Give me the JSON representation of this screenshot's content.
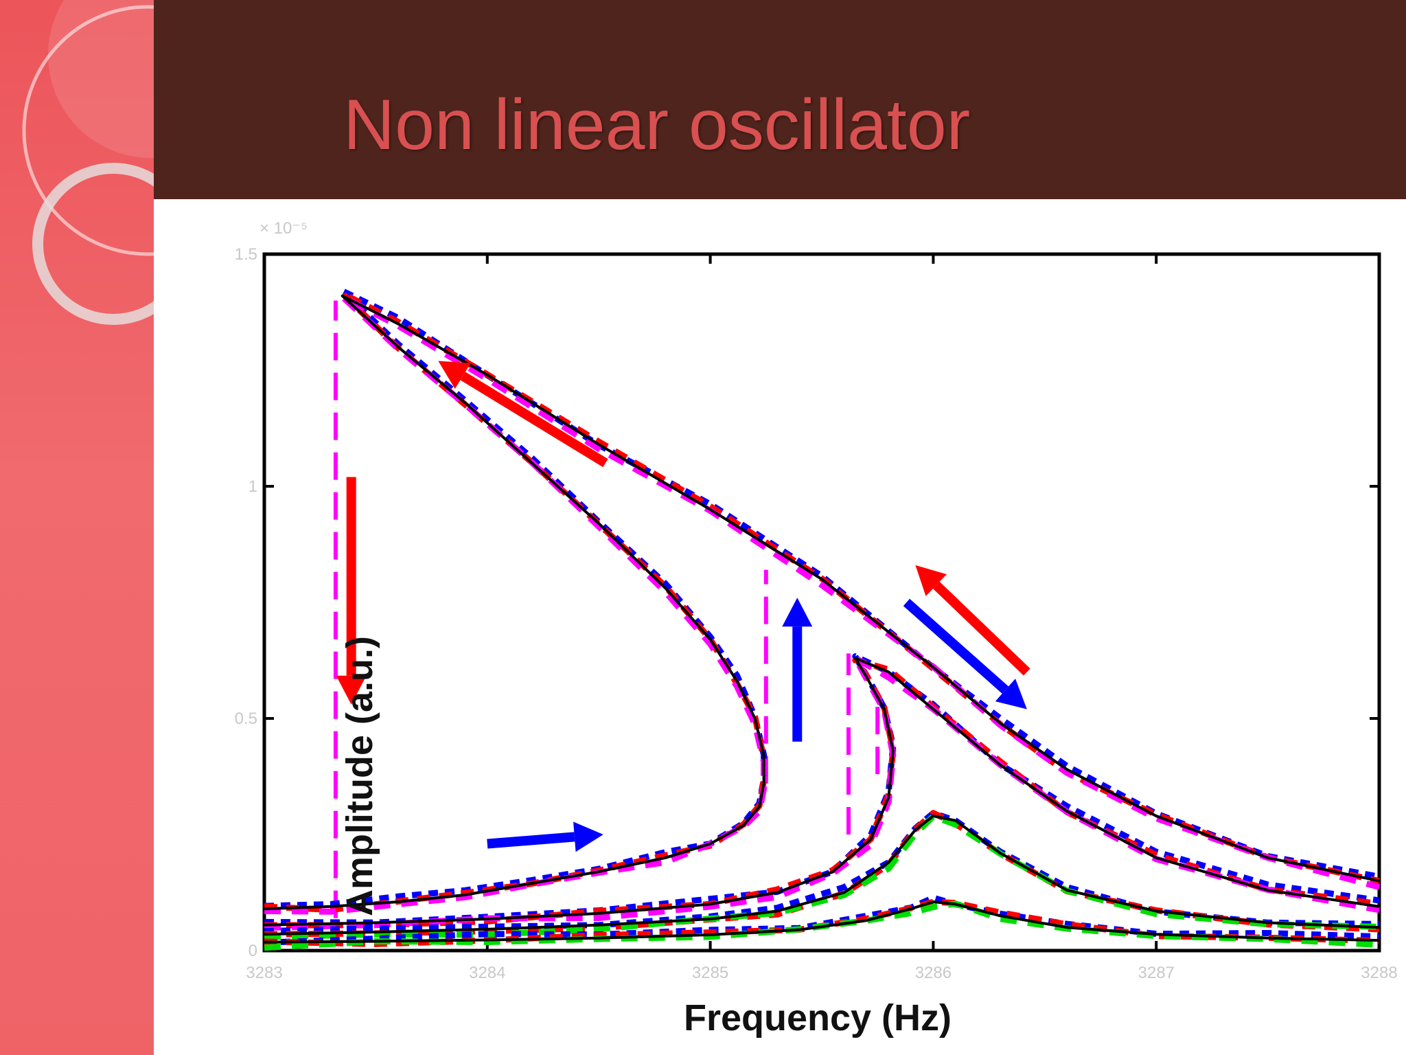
{
  "slide": {
    "title": "Non linear oscillator"
  },
  "colors": {
    "sidebar": "#ee5b60",
    "title_bar": "#4e241d",
    "title_text": "#d85050",
    "up_sweep": "#ff0000",
    "down_sweep": "#0000ff",
    "theory": "#000000",
    "jump": "#ff00ff",
    "green_data": "#00dd00"
  },
  "chart_data": {
    "type": "line",
    "xlabel": "Frequency (Hz)",
    "ylabel": "Amplitude (a.u.)",
    "y_scale_label": "× 10⁻⁵",
    "xlim": [
      3283,
      3288
    ],
    "ylim": [
      0,
      1.5
    ],
    "x_ticks": [
      3283,
      3284,
      3285,
      3286,
      3287,
      3288
    ],
    "x_tick_labels": [
      "3283",
      "3284",
      "3285",
      "3286",
      "3287",
      "3288"
    ],
    "y_ticks": [
      0,
      0.5,
      1,
      1.5
    ],
    "y_tick_labels": [
      "0",
      "0.5",
      "1",
      "1.5"
    ],
    "grid": false,
    "series": [
      {
        "role": "theory-largest",
        "points": [
          [
            3283.0,
            0.09
          ],
          [
            3283.3,
            0.095
          ],
          [
            3283.6,
            0.105
          ],
          [
            3283.9,
            0.12
          ],
          [
            3284.2,
            0.145
          ],
          [
            3284.5,
            0.17
          ],
          [
            3284.8,
            0.2
          ],
          [
            3285.0,
            0.23
          ],
          [
            3285.15,
            0.27
          ],
          [
            3285.22,
            0.31
          ],
          [
            3285.24,
            0.36
          ],
          [
            3285.24,
            0.42
          ],
          [
            3285.2,
            0.5
          ],
          [
            3285.12,
            0.58
          ],
          [
            3285.0,
            0.67
          ],
          [
            3284.8,
            0.78
          ],
          [
            3284.5,
            0.92
          ],
          [
            3284.2,
            1.05
          ],
          [
            3283.9,
            1.18
          ],
          [
            3283.6,
            1.3
          ],
          [
            3283.35,
            1.41
          ],
          [
            3283.6,
            1.35
          ],
          [
            3284.0,
            1.24
          ],
          [
            3284.5,
            1.09
          ],
          [
            3285.0,
            0.95
          ],
          [
            3285.5,
            0.8
          ],
          [
            3286.0,
            0.61
          ],
          [
            3286.3,
            0.49
          ],
          [
            3286.6,
            0.39
          ],
          [
            3287.0,
            0.29
          ],
          [
            3287.5,
            0.2
          ],
          [
            3288.0,
            0.15
          ]
        ]
      },
      {
        "role": "theory-large",
        "points": [
          [
            3283.0,
            0.055
          ],
          [
            3283.5,
            0.06
          ],
          [
            3284.0,
            0.068
          ],
          [
            3284.5,
            0.08
          ],
          [
            3285.0,
            0.1
          ],
          [
            3285.3,
            0.125
          ],
          [
            3285.55,
            0.17
          ],
          [
            3285.72,
            0.24
          ],
          [
            3285.8,
            0.33
          ],
          [
            3285.82,
            0.43
          ],
          [
            3285.78,
            0.52
          ],
          [
            3285.7,
            0.59
          ],
          [
            3285.65,
            0.63
          ],
          [
            3285.8,
            0.6
          ],
          [
            3286.0,
            0.52
          ],
          [
            3286.3,
            0.4
          ],
          [
            3286.6,
            0.3
          ],
          [
            3287.0,
            0.2
          ],
          [
            3287.5,
            0.13
          ],
          [
            3288.0,
            0.095
          ]
        ]
      },
      {
        "role": "theory-medium",
        "points": [
          [
            3283.0,
            0.035
          ],
          [
            3283.5,
            0.04
          ],
          [
            3284.0,
            0.046
          ],
          [
            3284.5,
            0.055
          ],
          [
            3285.0,
            0.068
          ],
          [
            3285.3,
            0.085
          ],
          [
            3285.6,
            0.125
          ],
          [
            3285.8,
            0.19
          ],
          [
            3285.92,
            0.26
          ],
          [
            3286.0,
            0.29
          ],
          [
            3286.1,
            0.28
          ],
          [
            3286.3,
            0.21
          ],
          [
            3286.6,
            0.13
          ],
          [
            3287.0,
            0.085
          ],
          [
            3287.5,
            0.06
          ],
          [
            3288.0,
            0.05
          ]
        ]
      },
      {
        "role": "theory-small",
        "points": [
          [
            3283.0,
            0.018
          ],
          [
            3283.5,
            0.02
          ],
          [
            3284.0,
            0.023
          ],
          [
            3284.5,
            0.027
          ],
          [
            3285.0,
            0.034
          ],
          [
            3285.4,
            0.045
          ],
          [
            3285.7,
            0.065
          ],
          [
            3285.9,
            0.09
          ],
          [
            3286.0,
            0.105
          ],
          [
            3286.1,
            0.1
          ],
          [
            3286.3,
            0.075
          ],
          [
            3286.6,
            0.05
          ],
          [
            3287.0,
            0.035
          ],
          [
            3287.5,
            0.027
          ],
          [
            3288.0,
            0.022
          ]
        ]
      }
    ],
    "jumps": [
      {
        "x": 3283.32,
        "y_from": 0.07,
        "y_to": 1.4
      },
      {
        "x": 3285.25,
        "y_from": 0.36,
        "y_to": 0.82
      },
      {
        "x": 3285.62,
        "y_from": 0.25,
        "y_to": 0.64
      },
      {
        "x": 3285.75,
        "y_from": 0.38,
        "y_to": 0.55
      }
    ],
    "arrows": [
      {
        "color": "red",
        "x1": 3284.53,
        "y1": 1.05,
        "x2": 3283.78,
        "y2": 1.27
      },
      {
        "color": "red",
        "x1": 3283.39,
        "y1": 1.02,
        "x2": 3283.39,
        "y2": 0.53
      },
      {
        "color": "blue",
        "x1": 3284.0,
        "y1": 0.23,
        "x2": 3284.52,
        "y2": 0.25
      },
      {
        "color": "blue",
        "x1": 3285.39,
        "y1": 0.45,
        "x2": 3285.39,
        "y2": 0.76
      },
      {
        "color": "red",
        "x1": 3286.42,
        "y1": 0.6,
        "x2": 3285.92,
        "y2": 0.83
      },
      {
        "color": "blue",
        "x1": 3285.88,
        "y1": 0.75,
        "x2": 3286.42,
        "y2": 0.52
      }
    ]
  }
}
